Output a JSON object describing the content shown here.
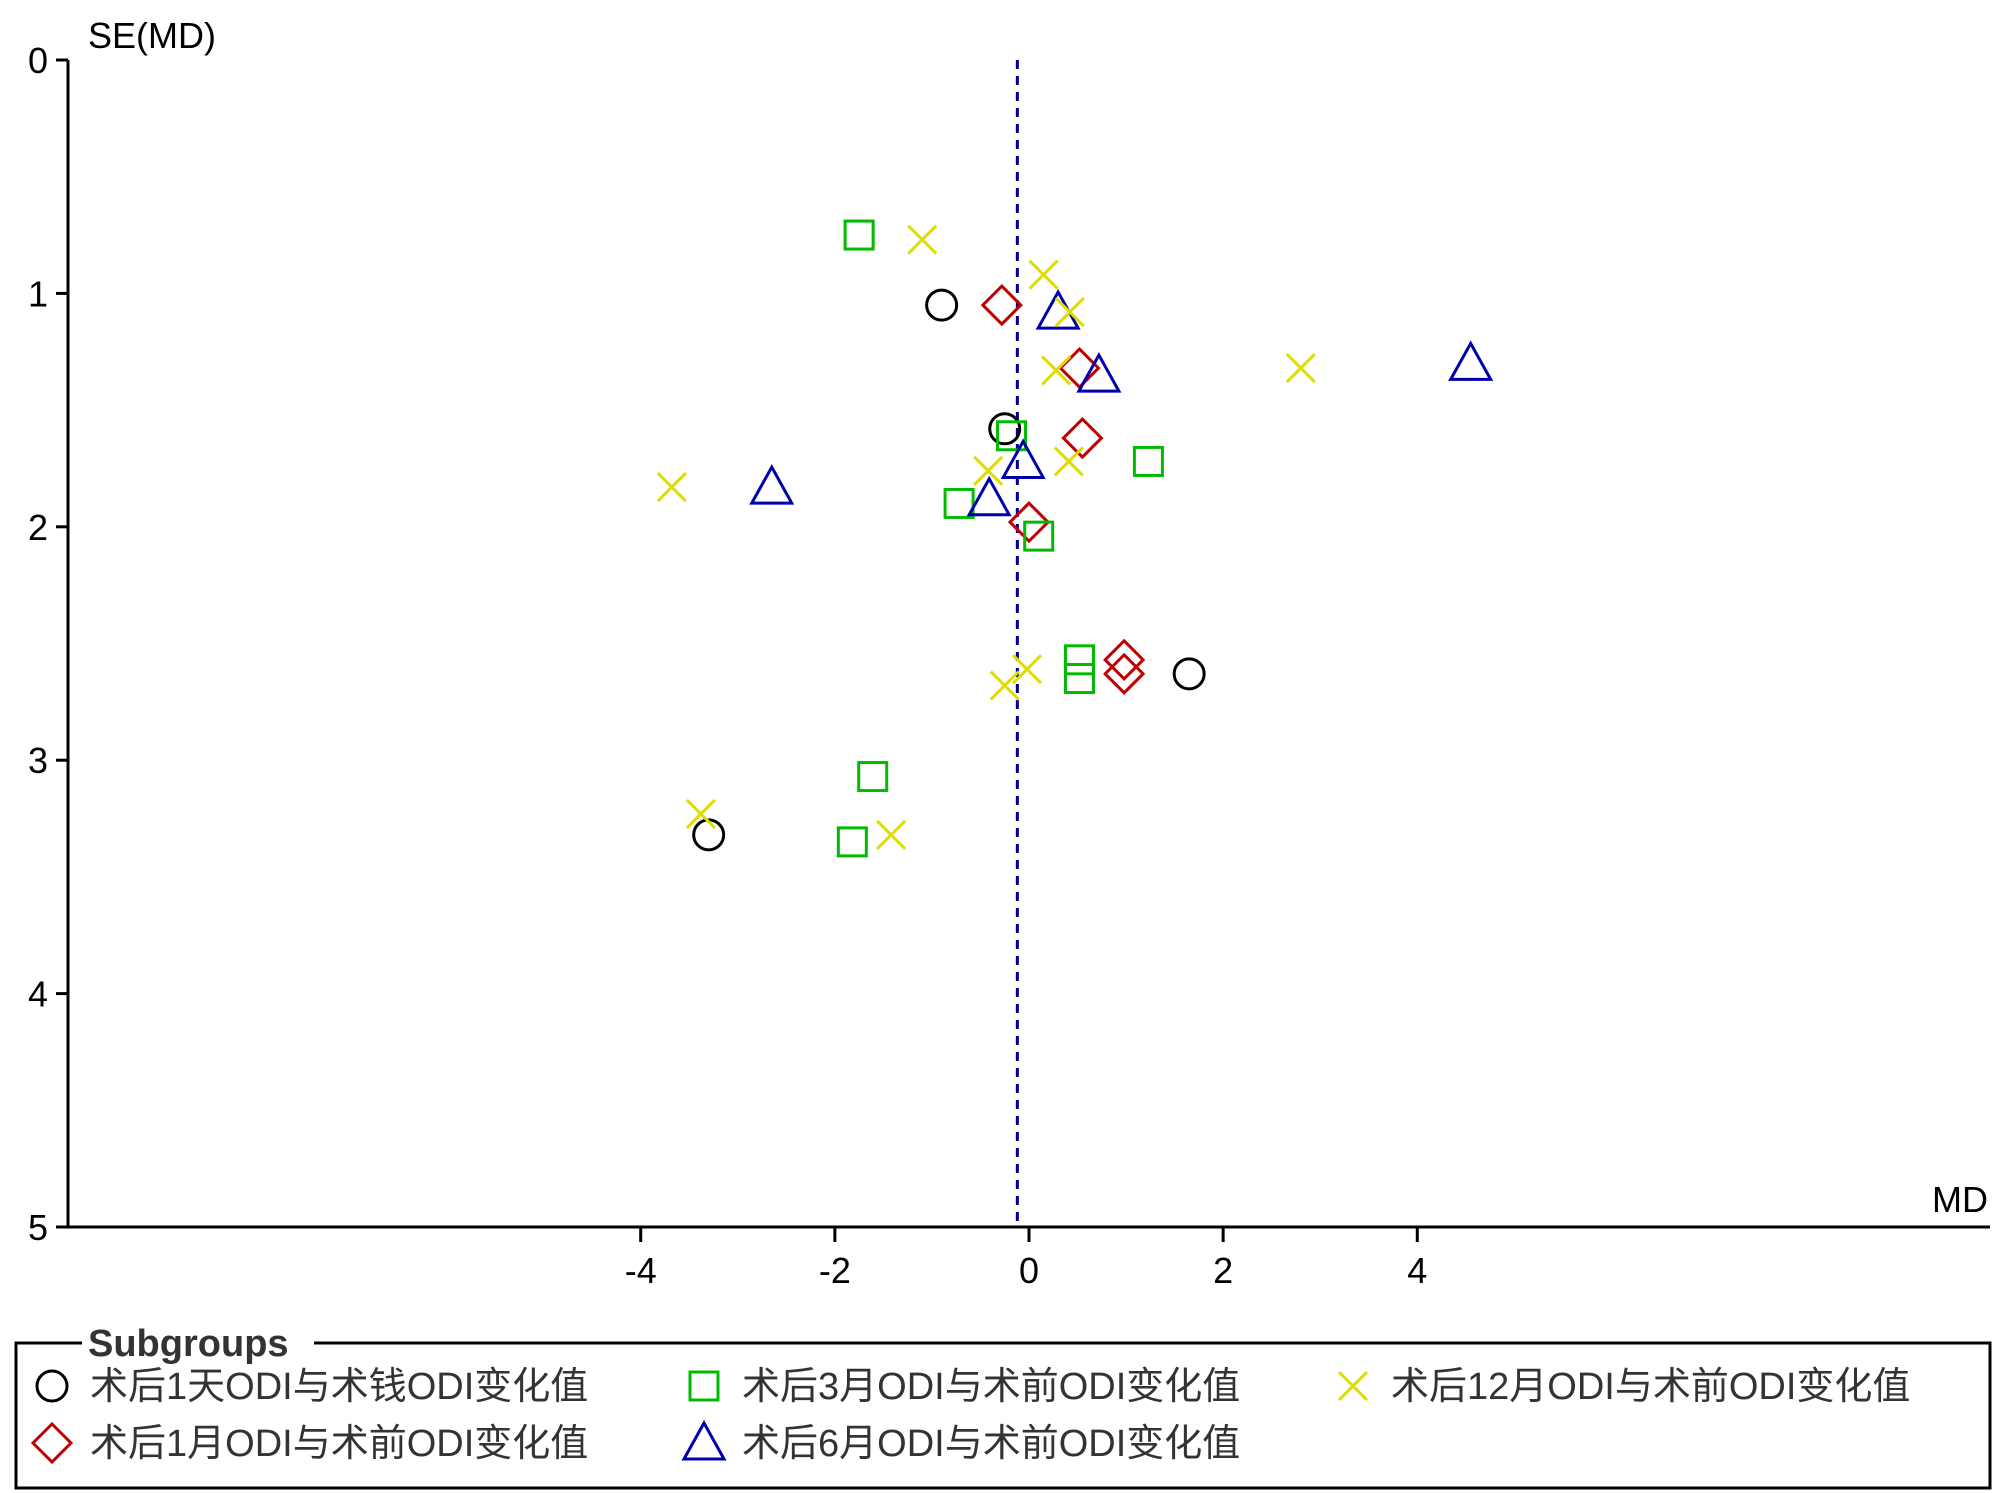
{
  "chart_data": {
    "type": "scatter",
    "title": "",
    "xlabel": "MD",
    "ylabel": "SE(MD)",
    "xlim": [
      -9.9,
      9.9
    ],
    "ylim": [
      0,
      5
    ],
    "y_inverted": true,
    "x_ticks": [
      "-4",
      "-2",
      "0",
      "2",
      "4"
    ],
    "y_ticks": [
      "0",
      "1",
      "2",
      "3",
      "4",
      "5"
    ],
    "reference_line": {
      "x": -0.12,
      "style": "dashed",
      "color": "#00008B"
    },
    "legend": {
      "title": "Subgroups",
      "placement": "bottom"
    },
    "series": [
      {
        "name": "术后1天ODI与术钱ODI变化值",
        "marker": "circle",
        "color": "#000000",
        "points": [
          {
            "x": -0.9,
            "y": 1.05
          },
          {
            "x": -0.25,
            "y": 1.58
          },
          {
            "x": 1.65,
            "y": 2.63
          },
          {
            "x": -3.3,
            "y": 3.32
          }
        ]
      },
      {
        "name": "术后1月ODI与术前ODI变化值",
        "marker": "diamond",
        "color": "#C00000",
        "points": [
          {
            "x": -0.28,
            "y": 1.05
          },
          {
            "x": 0.52,
            "y": 1.32
          },
          {
            "x": 0.55,
            "y": 1.62
          },
          {
            "x": 0.0,
            "y": 1.98
          },
          {
            "x": 0.98,
            "y": 2.57
          },
          {
            "x": 0.98,
            "y": 2.63
          }
        ]
      },
      {
        "name": "术后3月ODI与术前ODI变化值",
        "marker": "square",
        "color": "#00BB00",
        "points": [
          {
            "x": -1.75,
            "y": 0.75
          },
          {
            "x": -0.18,
            "y": 1.61
          },
          {
            "x": 1.23,
            "y": 1.72
          },
          {
            "x": -0.72,
            "y": 1.9
          },
          {
            "x": 0.1,
            "y": 2.04
          },
          {
            "x": 0.52,
            "y": 2.57
          },
          {
            "x": 0.52,
            "y": 2.65
          },
          {
            "x": -1.61,
            "y": 3.07
          },
          {
            "x": -1.82,
            "y": 3.35
          }
        ]
      },
      {
        "name": "术后6月ODI与术前ODI变化值",
        "marker": "triangle",
        "color": "#0000AA",
        "points": [
          {
            "x": 0.3,
            "y": 1.08
          },
          {
            "x": 0.72,
            "y": 1.35
          },
          {
            "x": 4.55,
            "y": 1.3
          },
          {
            "x": -0.06,
            "y": 1.72
          },
          {
            "x": -2.65,
            "y": 1.83
          },
          {
            "x": -0.41,
            "y": 1.88
          }
        ]
      },
      {
        "name": "术后12月ODI与术前ODI变化值",
        "marker": "x",
        "color": "#DDDD00",
        "points": [
          {
            "x": -1.1,
            "y": 0.77
          },
          {
            "x": 0.15,
            "y": 0.92
          },
          {
            "x": 0.42,
            "y": 1.08
          },
          {
            "x": 0.28,
            "y": 1.33
          },
          {
            "x": 2.8,
            "y": 1.32
          },
          {
            "x": 0.41,
            "y": 1.72
          },
          {
            "x": -0.42,
            "y": 1.76
          },
          {
            "x": -3.68,
            "y": 1.83
          },
          {
            "x": -0.02,
            "y": 2.61
          },
          {
            "x": -0.25,
            "y": 2.68
          },
          {
            "x": -3.38,
            "y": 3.23
          },
          {
            "x": -1.42,
            "y": 3.32
          }
        ]
      }
    ]
  }
}
